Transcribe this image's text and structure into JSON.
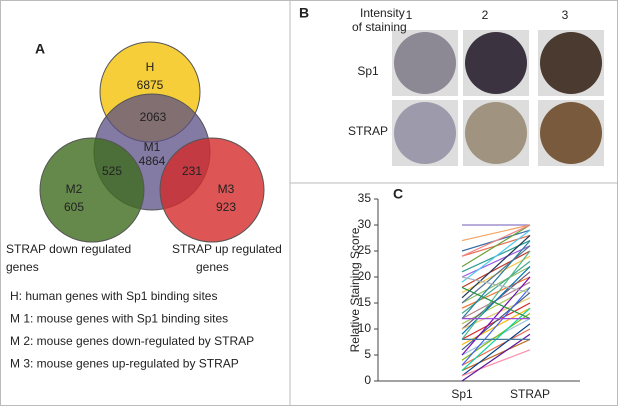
{
  "panel_a": {
    "label": "A",
    "sets": [
      {
        "label": "H",
        "count": 6875
      },
      {
        "label": "M1",
        "count": 4864
      },
      {
        "label": "M2",
        "count": 605
      },
      {
        "label": "M3",
        "count": 923
      }
    ],
    "overlaps": [
      {
        "count": 2063
      },
      {
        "count": 525
      },
      {
        "count": 231
      }
    ],
    "group_labels": [
      [
        "STRAP down regulated",
        "genes"
      ],
      [
        "STRAP up regulated",
        "genes"
      ]
    ],
    "legend": [
      "H: human genes with Sp1 binding sites",
      "M 1: mouse genes with Sp1 binding sites",
      "M 2: mouse genes down-regulated by STRAP",
      "M 3: mouse genes up-regulated by STRAP"
    ]
  },
  "panel_b": {
    "label": "B",
    "header": [
      "Intensity",
      "of staining"
    ],
    "columns": [
      "1",
      "2",
      "3"
    ],
    "rows": [
      "Sp1",
      "STRAP"
    ]
  },
  "chart_data": {
    "type": "line",
    "label": "C",
    "y_label": "Relative Staining Score",
    "categories": [
      "Sp1",
      "STRAP"
    ],
    "ylim": [
      0,
      35
    ],
    "yticks": [
      0,
      5,
      10,
      15,
      20,
      25,
      30,
      35
    ],
    "series": [
      {
        "color": "#8e7cc3",
        "values": [
          30,
          30
        ]
      },
      {
        "color": "#f4a261",
        "values": [
          27,
          30
        ]
      },
      {
        "color": "#3a6ea5",
        "values": [
          25,
          29
        ]
      },
      {
        "color": "#e76f51",
        "values": [
          24,
          28
        ]
      },
      {
        "color": "#6a9f3a",
        "values": [
          22,
          30
        ]
      },
      {
        "color": "#2a9d8f",
        "values": [
          21,
          27
        ]
      },
      {
        "color": "#9b5de5",
        "values": [
          20,
          26
        ]
      },
      {
        "color": "#4cc9f0",
        "values": [
          19,
          29
        ]
      },
      {
        "color": "#c0392b",
        "values": [
          18,
          25
        ]
      },
      {
        "color": "#f9c74f",
        "values": [
          17,
          24
        ]
      },
      {
        "color": "#1d3557",
        "values": [
          16,
          28
        ]
      },
      {
        "color": "#90be6d",
        "values": [
          15,
          22
        ]
      },
      {
        "color": "#577590",
        "values": [
          15,
          26
        ]
      },
      {
        "color": "#f3722c",
        "values": [
          14,
          20
        ]
      },
      {
        "color": "#43aa8b",
        "values": [
          13,
          23
        ]
      },
      {
        "color": "#b5838d",
        "values": [
          12,
          19
        ]
      },
      {
        "color": "#277da1",
        "values": [
          12,
          27
        ]
      },
      {
        "color": "#a7c957",
        "values": [
          11,
          18
        ]
      },
      {
        "color": "#6d597a",
        "values": [
          10,
          21
        ]
      },
      {
        "color": "#e9c46a",
        "values": [
          10,
          16
        ]
      },
      {
        "color": "#0077b6",
        "values": [
          9,
          22
        ]
      },
      {
        "color": "#d62828",
        "values": [
          8,
          15
        ]
      },
      {
        "color": "#52b788",
        "values": [
          8,
          25
        ]
      },
      {
        "color": "#ffb703",
        "values": [
          7,
          14
        ]
      },
      {
        "color": "#3d5a80",
        "values": [
          6,
          17
        ]
      },
      {
        "color": "#98c1d9",
        "values": [
          5,
          12
        ]
      },
      {
        "color": "#7209b7",
        "values": [
          5,
          20
        ]
      },
      {
        "color": "#80b918",
        "values": [
          4,
          13
        ]
      },
      {
        "color": "#ee6c4d",
        "values": [
          3,
          10
        ]
      },
      {
        "color": "#4361ee",
        "values": [
          3,
          18
        ]
      },
      {
        "color": "#bc6c25",
        "values": [
          2,
          8
        ]
      },
      {
        "color": "#06d6a0",
        "values": [
          2,
          14
        ]
      },
      {
        "color": "#023e8a",
        "values": [
          1,
          11
        ]
      },
      {
        "color": "#ff8fab",
        "values": [
          1,
          6
        ]
      },
      {
        "color": "#5a189a",
        "values": [
          0,
          9
        ]
      },
      {
        "color": "#2b9348",
        "values": [
          18,
          12
        ]
      },
      {
        "color": "#adb5bd",
        "values": [
          20,
          17
        ]
      },
      {
        "color": "#457b9d",
        "values": [
          8,
          8
        ]
      },
      {
        "color": "#9d4edd",
        "values": [
          12,
          12
        ]
      },
      {
        "color": "#f28482",
        "values": [
          24,
          30
        ]
      }
    ]
  }
}
